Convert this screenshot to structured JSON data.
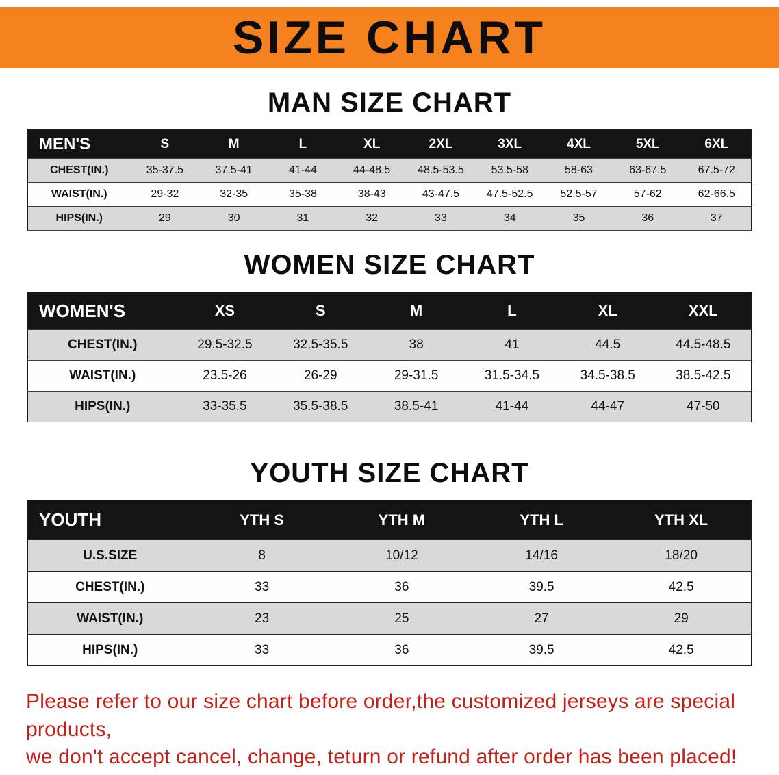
{
  "banner": {
    "title": "SIZE CHART"
  },
  "sections": [
    {
      "id": "men",
      "heading": "MAN SIZE CHART",
      "header": [
        "MEN'S",
        "S",
        "M",
        "L",
        "XL",
        "2XL",
        "3XL",
        "4XL",
        "5XL",
        "6XL"
      ],
      "rows": [
        [
          "CHEST(IN.)",
          "35-37.5",
          "37.5-41",
          "41-44",
          "44-48.5",
          "48.5-53.5",
          "53.5-58",
          "58-63",
          "63-67.5",
          "67.5-72"
        ],
        [
          "WAIST(IN.)",
          "29-32",
          "32-35",
          "35-38",
          "38-43",
          "43-47.5",
          "47.5-52.5",
          "52.5-57",
          "57-62",
          "62-66.5"
        ],
        [
          "HIPS(IN.)",
          "29",
          "30",
          "31",
          "32",
          "33",
          "34",
          "35",
          "36",
          "37"
        ]
      ]
    },
    {
      "id": "women",
      "heading": "WOMEN SIZE CHART",
      "header": [
        "WOMEN'S",
        "XS",
        "S",
        "M",
        "L",
        "XL",
        "XXL"
      ],
      "rows": [
        [
          "CHEST(IN.)",
          "29.5-32.5",
          "32.5-35.5",
          "38",
          "41",
          "44.5",
          "44.5-48.5"
        ],
        [
          "WAIST(IN.)",
          "23.5-26",
          "26-29",
          "29-31.5",
          "31.5-34.5",
          "34.5-38.5",
          "38.5-42.5"
        ],
        [
          "HIPS(IN.)",
          "33-35.5",
          "35.5-38.5",
          "38.5-41",
          "41-44",
          "44-47",
          "47-50"
        ]
      ]
    },
    {
      "id": "youth",
      "heading": "YOUTH SIZE CHART",
      "header": [
        "YOUTH",
        "YTH S",
        "YTH M",
        "YTH L",
        "YTH XL"
      ],
      "rows": [
        [
          "U.S.SIZE",
          "8",
          "10/12",
          "14/16",
          "18/20"
        ],
        [
          "CHEST(IN.)",
          "33",
          "36",
          "39.5",
          "42.5"
        ],
        [
          "WAIST(IN.)",
          "23",
          "25",
          "27",
          "29"
        ],
        [
          "HIPS(IN.)",
          "33",
          "36",
          "39.5",
          "42.5"
        ]
      ]
    }
  ],
  "footer": {
    "line1": "Please refer to our size chart before order,the customized jerseys are special products,",
    "line2": "we don't accept cancel, change, teturn or refund after order has been placed!"
  },
  "colors": {
    "banner_bg": "#F5821F",
    "table_header_bg": "#141414",
    "row_shade": "#d9d9d9",
    "notice_text": "#c32016"
  }
}
